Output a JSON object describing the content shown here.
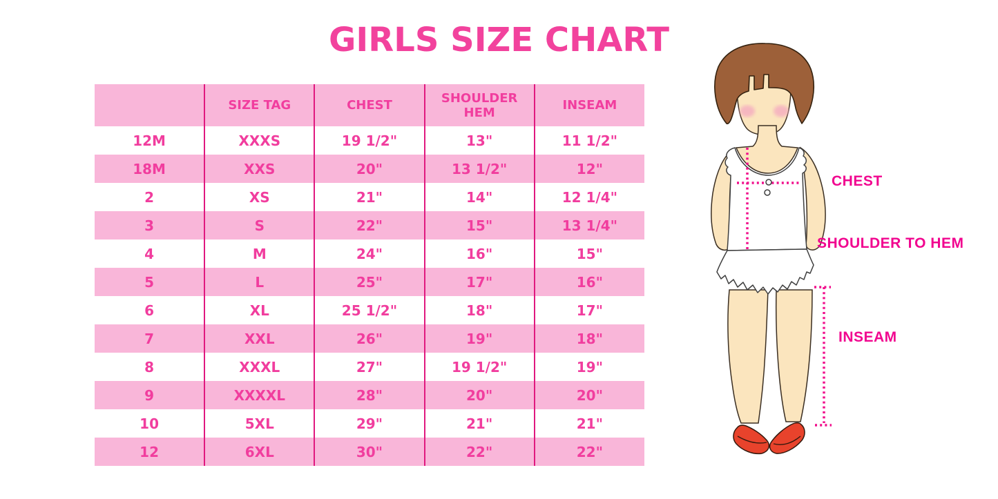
{
  "title": "GIRLS SIZE CHART",
  "colors": {
    "hot_pink_text": "#F13D9E",
    "band_pink": "#F9B6D9",
    "table_line_magenta": "#E0187F",
    "label_magenta": "#F1058F",
    "measure_dot_magenta": "#F10F8C",
    "hair_brown": "#9D6039",
    "skin": "#FBE5BE",
    "blush_pink": "#F5AFC0",
    "shoe_red": "#E8432C",
    "dress_white": "#FFFFFF"
  },
  "table": {
    "columns": [
      "",
      "SIZE TAG",
      "CHEST",
      "SHOULDER HEM",
      "INSEAM"
    ],
    "rows": [
      [
        "12M",
        "XXXS",
        "19 1/2\"",
        "13\"",
        "11 1/2\""
      ],
      [
        "18M",
        "XXS",
        "20\"",
        "13 1/2\"",
        "12\""
      ],
      [
        "2",
        "XS",
        "21\"",
        "14\"",
        "12 1/4\""
      ],
      [
        "3",
        "S",
        "22\"",
        "15\"",
        "13 1/4\""
      ],
      [
        "4",
        "M",
        "24\"",
        "16\"",
        "15\""
      ],
      [
        "5",
        "L",
        "25\"",
        "17\"",
        "16\""
      ],
      [
        "6",
        "XL",
        "25 1/2\"",
        "18\"",
        "17\""
      ],
      [
        "7",
        "XXL",
        "26\"",
        "19\"",
        "18\""
      ],
      [
        "8",
        "XXXL",
        "27\"",
        "19 1/2\"",
        "19\""
      ],
      [
        "9",
        "XXXXL",
        "28\"",
        "20\"",
        "20\""
      ],
      [
        "10",
        "5XL",
        "29\"",
        "21\"",
        "21\""
      ],
      [
        "12",
        "6XL",
        "30\"",
        "22\"",
        "22\""
      ]
    ]
  },
  "figure": {
    "labels": {
      "chest": "CHEST",
      "shoulder_to_hem": "SHOULDER TO HEM",
      "inseam": "INSEAM"
    }
  }
}
